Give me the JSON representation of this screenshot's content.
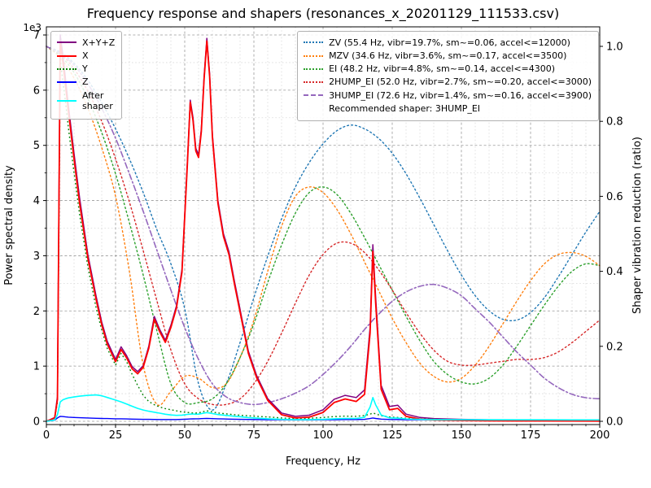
{
  "figure": {
    "title": "Frequency response and shapers (resonances_x_20201129_111533.csv)"
  },
  "chart_data": {
    "type": "line",
    "title": "Frequency response and shapers (resonances_x_20201129_111533.csv)",
    "x_axis": {
      "label": "Frequency, Hz",
      "min": 0,
      "max": 200,
      "major_ticks": [
        0,
        25,
        50,
        75,
        100,
        125,
        150,
        175,
        200
      ],
      "minor_step": 5
    },
    "y_left": {
      "label": "Power spectral density",
      "offset_text": "1e3",
      "min": 0,
      "max": 7000,
      "major_ticks": [
        0,
        1,
        2,
        3,
        4,
        5,
        6,
        7
      ],
      "tick_scale": 1000,
      "minor_step": 500
    },
    "y_right": {
      "label": "Shaper vibration reduction (ratio)",
      "min": 0,
      "max": 1,
      "ticks": [
        0,
        0.2,
        0.4,
        0.6,
        0.8,
        1.0
      ],
      "tick_labels": [
        "0.0",
        "0.2",
        "0.4",
        "0.6",
        "0.8",
        "1.0"
      ]
    },
    "psd": {
      "x": [
        0,
        3,
        4,
        5,
        6,
        7,
        8,
        10,
        12,
        15,
        18,
        20,
        22,
        25,
        27,
        29,
        31,
        33,
        35,
        37,
        39,
        41,
        43,
        45,
        47,
        49,
        51,
        52,
        53,
        54,
        55,
        56,
        57,
        58,
        59,
        60,
        62,
        64,
        66,
        68,
        70,
        73,
        76,
        80,
        85,
        90,
        95,
        100,
        104,
        108,
        112,
        115,
        117,
        118,
        119,
        121,
        124,
        127,
        130,
        135,
        140,
        150,
        160,
        170,
        180,
        190,
        200
      ],
      "series": [
        {
          "name": "sum",
          "label": "X+Y+Z",
          "color": "#800080",
          "style": "solid",
          "width": 1.5,
          "values": [
            0,
            70,
            450,
            7000,
            6620,
            6160,
            5700,
            4850,
            4050,
            3020,
            2260,
            1800,
            1450,
            1120,
            1350,
            1190,
            990,
            900,
            1010,
            1360,
            1900,
            1660,
            1470,
            1740,
            2090,
            2750,
            4750,
            5820,
            5500,
            4950,
            4830,
            5300,
            6250,
            6940,
            6300,
            5200,
            4000,
            3400,
            3070,
            2530,
            2030,
            1270,
            830,
            410,
            150,
            90,
            110,
            210,
            400,
            470,
            430,
            570,
            1700,
            3200,
            2260,
            650,
            270,
            290,
            130,
            70,
            50,
            35,
            28,
            25,
            22,
            20,
            18
          ]
        },
        {
          "name": "x",
          "label": "X",
          "color": "#ff0000",
          "style": "solid",
          "width": 1.8,
          "values": [
            0,
            60,
            400,
            6880,
            6500,
            6050,
            5600,
            4750,
            3950,
            2950,
            2200,
            1750,
            1400,
            1080,
            1300,
            1150,
            950,
            860,
            980,
            1320,
            1850,
            1620,
            1430,
            1700,
            2050,
            2700,
            4700,
            5780,
            5450,
            4900,
            4780,
            5250,
            6200,
            6890,
            6250,
            5150,
            3950,
            3350,
            3020,
            2480,
            1980,
            1230,
            790,
            380,
            120,
            60,
            75,
            160,
            340,
            405,
            360,
            490,
            1600,
            3080,
            2150,
            580,
            210,
            235,
            90,
            40,
            25,
            15,
            10,
            8,
            8,
            6,
            5
          ]
        },
        {
          "name": "y",
          "label": "Y",
          "color": "#008000",
          "style": "dotted",
          "width": 1.4,
          "values": [
            0,
            50,
            350,
            6550,
            6150,
            5750,
            5300,
            4500,
            3750,
            2800,
            2050,
            1650,
            1320,
            1020,
            1230,
            1080,
            850,
            650,
            470,
            360,
            300,
            260,
            230,
            210,
            190,
            170,
            160,
            155,
            150,
            150,
            155,
            165,
            180,
            190,
            180,
            170,
            150,
            140,
            130,
            120,
            110,
            100,
            90,
            80,
            60,
            50,
            55,
            70,
            85,
            95,
            90,
            105,
            130,
            150,
            135,
            100,
            80,
            70,
            55,
            45,
            35,
            25,
            20,
            18,
            15,
            12,
            10
          ]
        },
        {
          "name": "z",
          "label": "Z",
          "color": "#0000ff",
          "style": "solid",
          "width": 1.4,
          "values": [
            0,
            20,
            60,
            90,
            85,
            80,
            75,
            70,
            65,
            60,
            55,
            52,
            50,
            45,
            45,
            42,
            40,
            38,
            36,
            35,
            34,
            33,
            32,
            32,
            33,
            35,
            40,
            42,
            44,
            45,
            46,
            48,
            50,
            52,
            50,
            48,
            45,
            42,
            40,
            38,
            36,
            34,
            32,
            30,
            28,
            26,
            26,
            28,
            30,
            32,
            32,
            36,
            50,
            60,
            52,
            40,
            34,
            32,
            30,
            28,
            26,
            24,
            22,
            20,
            20,
            18,
            18
          ]
        },
        {
          "name": "after_shaper",
          "label": "After\nshaper",
          "color": "#00ffff",
          "style": "solid",
          "width": 1.6,
          "values": [
            0,
            25,
            120,
            350,
            390,
            410,
            425,
            440,
            455,
            470,
            478,
            462,
            432,
            385,
            352,
            312,
            272,
            235,
            205,
            182,
            165,
            148,
            128,
            115,
            108,
            112,
            125,
            130,
            132,
            128,
            130,
            138,
            150,
            158,
            150,
            140,
            122,
            112,
            102,
            92,
            84,
            68,
            57,
            46,
            36,
            31,
            31,
            36,
            46,
            52,
            52,
            72,
            260,
            430,
            300,
            115,
            62,
            57,
            42,
            36,
            31,
            28,
            27,
            26,
            26,
            25,
            25
          ]
        }
      ]
    },
    "shapers": {
      "x": [
        0,
        5,
        10,
        15,
        20,
        25,
        30,
        35,
        40,
        45,
        50,
        55,
        60,
        65,
        70,
        75,
        80,
        85,
        90,
        95,
        100,
        105,
        110,
        115,
        120,
        125,
        130,
        135,
        140,
        145,
        150,
        155,
        160,
        165,
        170,
        175,
        180,
        185,
        190,
        195,
        200
      ],
      "series": [
        {
          "name": "zv",
          "label": "ZV (55.4 Hz, vibr=19.7%, sm~=0.06, accel<=12000)",
          "color": "#1f77b4",
          "style": "dotted",
          "width": 1.4,
          "values": [
            1.0,
            0.985,
            0.955,
            0.91,
            0.85,
            0.78,
            0.7,
            0.61,
            0.51,
            0.42,
            0.3,
            0.1,
            0.03,
            0.1,
            0.21,
            0.33,
            0.44,
            0.54,
            0.625,
            0.69,
            0.74,
            0.775,
            0.79,
            0.78,
            0.755,
            0.715,
            0.66,
            0.595,
            0.525,
            0.455,
            0.39,
            0.335,
            0.295,
            0.272,
            0.27,
            0.29,
            0.33,
            0.385,
            0.445,
            0.505,
            0.56
          ]
        },
        {
          "name": "mzv",
          "label": "MZV (34.6 Hz, vibr=3.6%, sm~=0.17, accel<=3500)",
          "color": "#ff7f0e",
          "style": "dotted",
          "width": 1.4,
          "values": [
            1.0,
            0.97,
            0.915,
            0.835,
            0.73,
            0.6,
            0.4,
            0.15,
            0.045,
            0.08,
            0.12,
            0.115,
            0.09,
            0.1,
            0.17,
            0.27,
            0.4,
            0.52,
            0.6,
            0.625,
            0.61,
            0.565,
            0.5,
            0.425,
            0.35,
            0.275,
            0.21,
            0.155,
            0.12,
            0.105,
            0.115,
            0.15,
            0.2,
            0.26,
            0.32,
            0.375,
            0.42,
            0.445,
            0.45,
            0.44,
            0.415
          ]
        },
        {
          "name": "ei",
          "label": "EI (48.2 Hz, vibr=4.8%, sm~=0.14, accel<=4300)",
          "color": "#2ca02c",
          "style": "dotted",
          "width": 1.4,
          "values": [
            1.0,
            0.975,
            0.93,
            0.86,
            0.77,
            0.66,
            0.53,
            0.39,
            0.24,
            0.1,
            0.05,
            0.05,
            0.06,
            0.1,
            0.17,
            0.26,
            0.37,
            0.47,
            0.555,
            0.61,
            0.625,
            0.605,
            0.555,
            0.49,
            0.42,
            0.35,
            0.28,
            0.215,
            0.16,
            0.125,
            0.105,
            0.1,
            0.115,
            0.15,
            0.2,
            0.255,
            0.31,
            0.36,
            0.4,
            0.42,
            0.415
          ]
        },
        {
          "name": "2hump_ei",
          "label": "2HUMP_EI (52.0 Hz, vibr=2.7%, sm~=0.20, accel<=3000)",
          "color": "#d62728",
          "style": "dotted",
          "width": 1.4,
          "values": [
            1.0,
            0.98,
            0.94,
            0.88,
            0.8,
            0.7,
            0.585,
            0.455,
            0.32,
            0.19,
            0.1,
            0.06,
            0.045,
            0.045,
            0.06,
            0.1,
            0.16,
            0.235,
            0.315,
            0.39,
            0.445,
            0.475,
            0.475,
            0.45,
            0.405,
            0.35,
            0.29,
            0.235,
            0.19,
            0.16,
            0.15,
            0.15,
            0.155,
            0.16,
            0.165,
            0.165,
            0.17,
            0.185,
            0.21,
            0.24,
            0.27
          ]
        },
        {
          "name": "3hump_ei",
          "label": "3HUMP_EI (72.6 Hz, vibr=1.4%, sm~=0.16, accel<=3900)",
          "color": "#9467bd",
          "style": "dashdot",
          "width": 1.6,
          "values": [
            1.0,
            0.98,
            0.95,
            0.9,
            0.835,
            0.755,
            0.66,
            0.56,
            0.455,
            0.35,
            0.25,
            0.165,
            0.1,
            0.065,
            0.05,
            0.045,
            0.05,
            0.06,
            0.075,
            0.095,
            0.125,
            0.16,
            0.2,
            0.245,
            0.285,
            0.32,
            0.345,
            0.36,
            0.365,
            0.355,
            0.335,
            0.3,
            0.265,
            0.225,
            0.185,
            0.15,
            0.115,
            0.09,
            0.072,
            0.063,
            0.06
          ]
        }
      ],
      "legend_note": "Recommended shaper: 3HUMP_EI"
    }
  }
}
